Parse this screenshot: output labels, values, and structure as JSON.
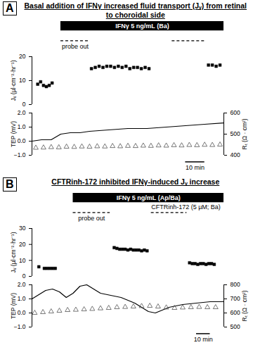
{
  "chart_data": [
    {
      "panel": "A",
      "title": "Basal addition of IFNγ increased fluid transport (Jᵥ) from retinal to choroidal side",
      "xlim": [
        0,
        100
      ],
      "tick_labels": "y",
      "grid": false,
      "treatment": {
        "label": "IFNγ 5 ng/mL (Ba)",
        "start": 15,
        "end": 100
      },
      "probe_out": {
        "label": "probe out",
        "periods": [
          [
            15,
            30
          ],
          [
            73,
            90
          ]
        ]
      },
      "annotations": [],
      "scale_bar": {
        "label": "10 min",
        "length": 10
      },
      "charts": [
        {
          "type": "scatter",
          "ylabel": "Jᵥ (µl·cm⁻²·hr⁻¹)",
          "ylim": [
            0,
            20
          ],
          "yticks": [
            0,
            10,
            20
          ],
          "series": [
            {
              "type": "scatter",
              "marker": "square",
              "color": "#000000",
              "x": [
                3,
                4.5,
                6,
                7.5,
                9,
                10.5,
                31,
                33,
                35,
                37,
                39,
                41,
                43,
                45,
                47,
                49,
                51,
                53,
                55,
                57,
                59,
                61,
                92,
                94,
                96,
                98
              ],
              "values": [
                8.5,
                9.5,
                8,
                7.5,
                8,
                9,
                15,
                15.5,
                16,
                15.5,
                16,
                16,
                15.5,
                16,
                15.5,
                16,
                15,
                15.5,
                15.5,
                15,
                15.5,
                15,
                16.5,
                16.5,
                16,
                16.5
              ]
            }
          ]
        },
        {
          "type": "line",
          "ylabel": "TEP (mV)",
          "ylim": [
            -1,
            2
          ],
          "yticks": [
            -1,
            0,
            1,
            2
          ],
          "y2label": "Rₜ (Ω · cm²)",
          "y2lim": [
            400,
            600
          ],
          "y2ticks": [
            400,
            500,
            600
          ],
          "series": [
            {
              "type": "line",
              "color": "#000000",
              "x": [
                0,
                5,
                10,
                15,
                20,
                25,
                30,
                40,
                50,
                60,
                70,
                80,
                90,
                100
              ],
              "values": [
                0,
                0.1,
                0.1,
                0.5,
                0.6,
                0.6,
                0.7,
                0.8,
                0.9,
                0.9,
                1.0,
                1.1,
                1.2,
                1.3
              ]
            },
            {
              "type": "scatter",
              "marker": "triangle",
              "color": "#555555",
              "axis": "y2",
              "x": [
                2,
                6,
                10,
                14,
                18,
                22,
                26,
                30,
                34,
                38,
                42,
                46,
                50,
                54,
                58,
                62,
                66,
                70,
                74,
                78,
                82,
                86,
                90,
                94,
                98
              ],
              "values": [
                435,
                436,
                438,
                437,
                440,
                439,
                441,
                440,
                442,
                441,
                443,
                442,
                444,
                443,
                445,
                444,
                446,
                445,
                447,
                446,
                448,
                447,
                449,
                448,
                450
              ]
            }
          ]
        }
      ]
    },
    {
      "panel": "B",
      "title": "CFTRinh-172 inhibited IFNγ-induced Jᵥ increase",
      "xlim": [
        0,
        140
      ],
      "tick_labels": "y",
      "grid": false,
      "treatment": {
        "label": "IFNγ 5 ng/mL (Ap/Ba)",
        "start": 30,
        "end": 140
      },
      "probe_out": {
        "label": "probe out",
        "periods": [
          [
            30,
            57
          ],
          [
            87,
            113
          ]
        ]
      },
      "annotations": [
        {
          "text": "CFTRinh-172 (5 µM; Ba)",
          "x": 87
        }
      ],
      "scale_bar": {
        "label": "10 min",
        "length": 10
      },
      "charts": [
        {
          "type": "scatter",
          "ylabel": "Jᵥ (µl·cm⁻²·hr⁻¹)",
          "ylim": [
            0,
            30
          ],
          "yticks": [
            0,
            10,
            20,
            30
          ],
          "series": [
            {
              "type": "scatter",
              "marker": "square",
              "color": "#000000",
              "x": [
                5,
                9,
                11,
                13,
                15,
                17,
                60,
                62,
                64,
                66,
                68,
                70,
                72,
                74,
                76,
                78,
                80,
                82,
                84,
                115,
                117,
                119,
                121,
                123,
                125,
                127,
                129,
                131,
                133
              ],
              "values": [
                6,
                5,
                5,
                5,
                5,
                5,
                18,
                17.5,
                17,
                17,
                17,
                16.5,
                17,
                16.5,
                16.5,
                16.5,
                16,
                16.5,
                16,
                8.5,
                8,
                8,
                7.5,
                8,
                8,
                7.5,
                8,
                8,
                7.5
              ]
            }
          ]
        },
        {
          "type": "line",
          "ylabel": "TEP (mV)",
          "ylim": [
            -1,
            2
          ],
          "yticks": [
            -1,
            0,
            1,
            2
          ],
          "y2label": "Rₜ (Ω · cm²)",
          "y2lim": [
            500,
            800
          ],
          "y2ticks": [
            500,
            600,
            700,
            800
          ],
          "series": [
            {
              "type": "line",
              "color": "#000000",
              "x": [
                0,
                5,
                10,
                15,
                20,
                25,
                30,
                35,
                40,
                45,
                50,
                55,
                60,
                65,
                70,
                75,
                80,
                85,
                90,
                95,
                100,
                110,
                120,
                130,
                140
              ],
              "values": [
                1.0,
                1.3,
                1.6,
                1.7,
                1.5,
                1.1,
                1.4,
                1.9,
                2.0,
                1.7,
                1.4,
                1.3,
                1.2,
                1.1,
                0.9,
                0.7,
                0.4,
                0.1,
                0.0,
                0.2,
                0.4,
                0.6,
                0.7,
                0.8,
                0.8
              ]
            },
            {
              "type": "scatter",
              "marker": "triangle",
              "color": "#555555",
              "axis": "y2",
              "x": [
                2,
                8,
                14,
                20,
                26,
                32,
                38,
                44,
                50,
                56,
                62,
                68,
                74,
                80,
                86,
                92,
                98,
                104,
                110,
                116,
                122,
                128,
                134
              ],
              "values": [
                600,
                605,
                610,
                615,
                620,
                622,
                625,
                628,
                632,
                635,
                640,
                642,
                645,
                648,
                650,
                645,
                638,
                635,
                638,
                640,
                642,
                640,
                640
              ]
            }
          ]
        }
      ]
    }
  ]
}
